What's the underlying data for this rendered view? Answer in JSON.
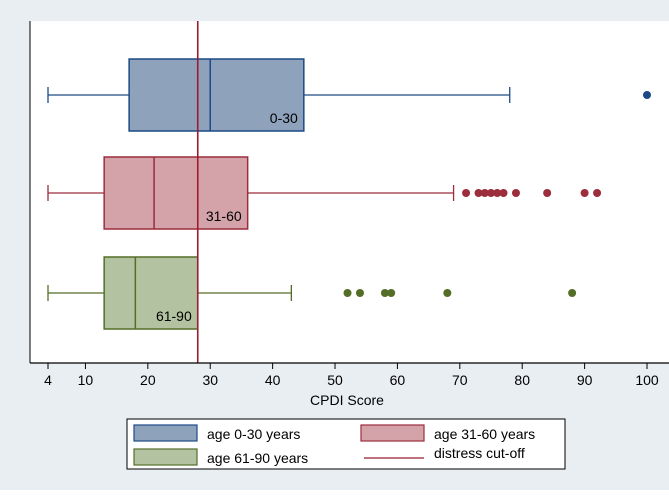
{
  "colors": {
    "outer_background": "#e9eef3",
    "plot_background": "#ffffff",
    "cutoff_line": "#9b1c31"
  },
  "legend": {
    "items": [
      {
        "label": "age 0-30 years",
        "kind": "box",
        "color": "age 0-30 years"
      },
      {
        "label": "age 31-60 years",
        "kind": "box",
        "color": "age 31-60 years"
      },
      {
        "label": "age 61-90 years",
        "kind": "box",
        "color": "age 61-90 years"
      },
      {
        "label": "distress cut-off",
        "kind": "line"
      }
    ]
  },
  "chart_data": {
    "type": "boxplot",
    "orientation": "horizontal",
    "title": "",
    "xlabel": "CPDI Score",
    "ylabel": "",
    "xlim": [
      0,
      104
    ],
    "xticks": [
      4,
      10,
      20,
      30,
      40,
      50,
      60,
      70,
      80,
      90,
      100
    ],
    "grid": false,
    "legend_position": "bottom",
    "reference_line": {
      "label": "distress cut-off",
      "x": 28
    },
    "series": [
      {
        "name": "age 0-30 years",
        "box_label": "0-30",
        "fill": "#8ea2bc",
        "stroke": "#1d4a85",
        "whisker_low": 4,
        "q1": 17,
        "median": 30,
        "q3": 45,
        "whisker_high": 78,
        "outliers": [
          100
        ]
      },
      {
        "name": "age 31-60 years",
        "box_label": "31-60",
        "fill": "#d4a3a9",
        "stroke": "#9b2d3c",
        "whisker_low": 4,
        "q1": 13,
        "median": 21,
        "q3": 36,
        "whisker_high": 69,
        "outliers": [
          71,
          73,
          74,
          75,
          76,
          77,
          79,
          84,
          90,
          92
        ]
      },
      {
        "name": "age 61-90 years",
        "box_label": "61-90",
        "fill": "#b3c2a0",
        "stroke": "#546e28",
        "whisker_low": 4,
        "q1": 13,
        "median": 18,
        "q3": 28,
        "whisker_high": 43,
        "outliers": [
          52,
          54,
          58,
          59,
          68,
          88
        ]
      }
    ]
  }
}
